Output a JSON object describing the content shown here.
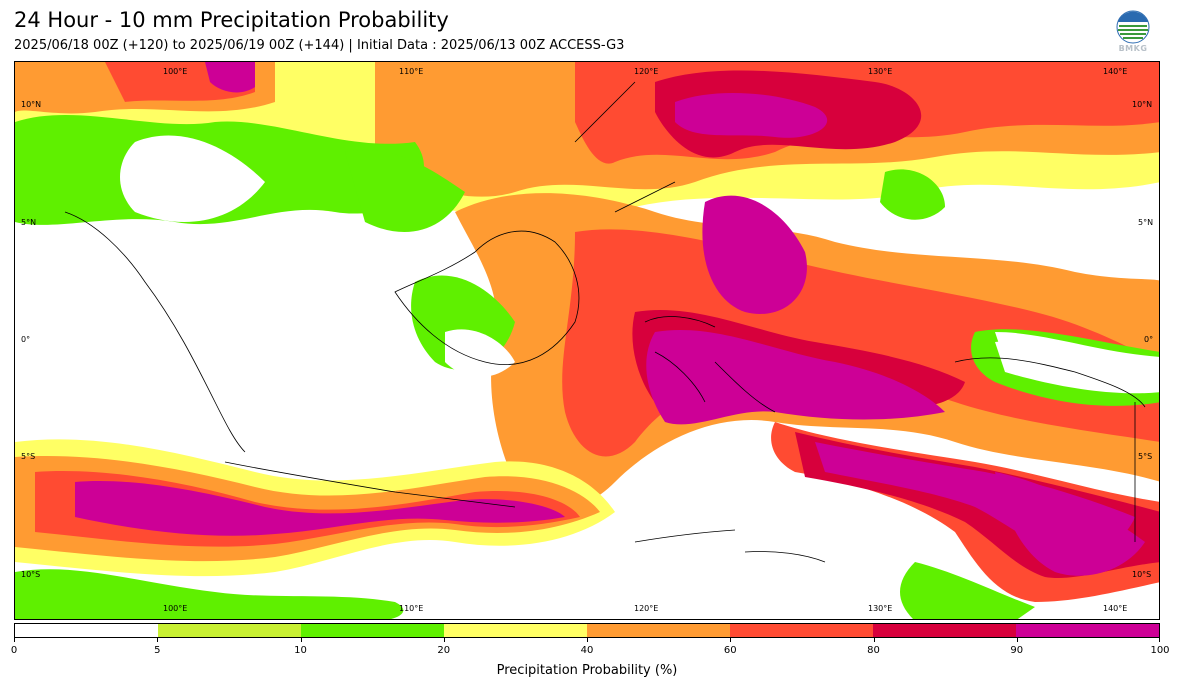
{
  "header": {
    "title": "24 Hour - 10 mm Precipitation Probability",
    "subtitle": "2025/06/18 00Z (+120) to 2025/06/19 00Z (+144) | Initial Data : 2025/06/13 00Z ACCESS-G3",
    "logo_text": "BMKG"
  },
  "map": {
    "lon_labels_top": [
      "100°E",
      "110°E",
      "120°E",
      "130°E",
      "140°E"
    ],
    "lon_labels_bottom": [
      "100°E",
      "110°E",
      "120°E",
      "130°E",
      "140°E"
    ],
    "lat_labels_left": [
      "10°N",
      "5°N",
      "0°",
      "5°S",
      "10°S"
    ],
    "lat_labels_right": [
      "10°N",
      "5°N",
      "0°",
      "5°S",
      "10°S"
    ]
  },
  "colorbar": {
    "label": "Precipitation Probability (%)",
    "ticks": [
      "0",
      "5",
      "10",
      "20",
      "40",
      "60",
      "80",
      "90",
      "100"
    ],
    "colors": [
      "#ffffff",
      "#c8f032",
      "#5ff000",
      "#ffff64",
      "#ff9b32",
      "#ff4b32",
      "#d7003c",
      "#cd0096"
    ]
  }
}
